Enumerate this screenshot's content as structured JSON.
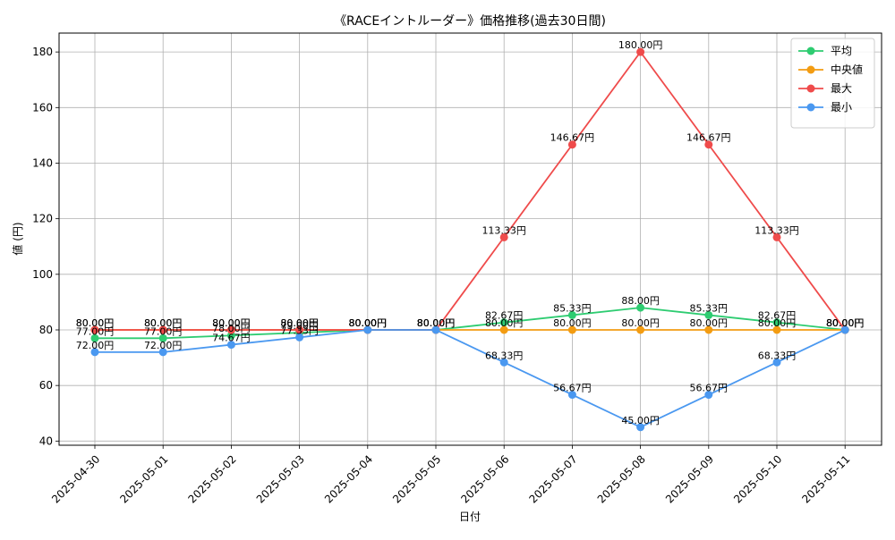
{
  "chart_data": {
    "type": "line",
    "title": "《RACEイントルーダー》価格推移(過去30日間)",
    "xlabel": "日付",
    "ylabel": "値 (円)",
    "categories": [
      "2025-04-30",
      "2025-05-01",
      "2025-05-02",
      "2025-05-03",
      "2025-05-04",
      "2025-05-05",
      "2025-05-06",
      "2025-05-07",
      "2025-05-08",
      "2025-05-09",
      "2025-05-10",
      "2025-05-11"
    ],
    "ylim": [
      38.5,
      186.8
    ],
    "yticks": [
      40,
      60,
      80,
      100,
      120,
      140,
      160,
      180
    ],
    "grid": true,
    "legend_position": "top-right",
    "value_suffix": "円",
    "series": [
      {
        "name": "平均",
        "color": "#2ecc71",
        "values": [
          77.0,
          77.0,
          78.0,
          79.0,
          80.0,
          80.0,
          82.67,
          85.33,
          88.0,
          85.33,
          82.67,
          80.0
        ],
        "labels": [
          "77.00円",
          "77.00円",
          "78.00円",
          "79.00円",
          "80.00円",
          "80.00円",
          "82.67円",
          "85.33円",
          "88.00円",
          "85.33円",
          "82.67円",
          "80.00円"
        ]
      },
      {
        "name": "中央値",
        "color": "#f39c12",
        "values": [
          80.0,
          80.0,
          80.0,
          80.0,
          80.0,
          80.0,
          80.0,
          80.0,
          80.0,
          80.0,
          80.0,
          80.0
        ],
        "labels": [
          "80.00円",
          "80.00円",
          "80.00円",
          "80.00円",
          "80.00円",
          "80.00円",
          "80.00円",
          "80.00円",
          "80.00円",
          "80.00円",
          "80.00円",
          "80.00円"
        ]
      },
      {
        "name": "最大",
        "color": "#ef4b4b",
        "values": [
          80.0,
          80.0,
          80.0,
          80.0,
          80.0,
          80.0,
          113.33,
          146.67,
          180.0,
          146.67,
          113.33,
          80.0
        ],
        "labels": [
          "80.00円",
          "80.00円",
          "80.00円",
          "80.00円",
          "80.00円",
          "80.00円",
          "113.33円",
          "146.67円",
          "180.00円",
          "146.67円",
          "113.33円",
          "80.00円"
        ]
      },
      {
        "name": "最小",
        "color": "#4a98f0",
        "values": [
          72.0,
          72.0,
          74.67,
          77.33,
          80.0,
          80.0,
          68.33,
          56.67,
          45.0,
          56.67,
          68.33,
          80.0
        ],
        "labels": [
          "72.00円",
          "72.00円",
          "74.67円",
          "77.33円",
          "80.00円",
          "80.00円",
          "68.33円",
          "56.67円",
          "45.00円",
          "56.67円",
          "68.33円",
          "80.00円"
        ]
      }
    ]
  }
}
